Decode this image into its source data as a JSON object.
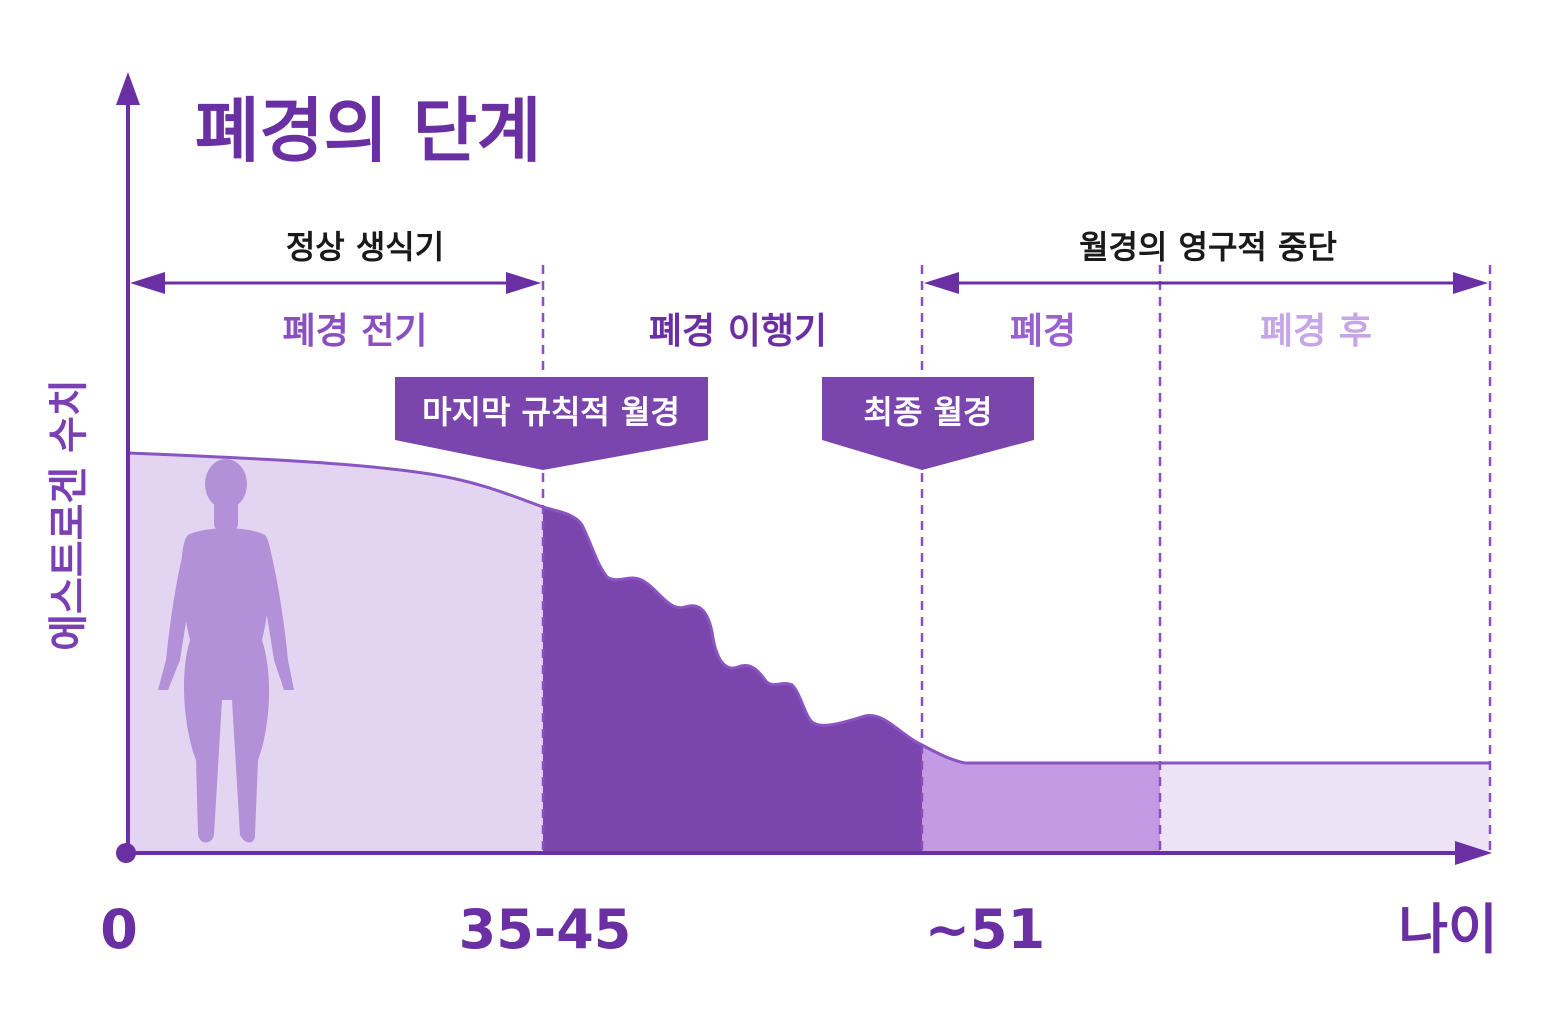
{
  "title": "폐경의 단계",
  "y_axis_label": "에스트로겐 수치",
  "x_axis_label": "나이",
  "x_ticks": [
    "0",
    "35-45",
    "~51"
  ],
  "spans": {
    "reproductive": "정상 생식기",
    "permanent_cessation": "월경의 영구적 중단"
  },
  "phases": [
    {
      "label": "폐경 전기",
      "color": "#8a4fc0"
    },
    {
      "label": "폐경 이행기",
      "color": "#6a2fa3"
    },
    {
      "label": "폐경",
      "color": "#9a5fd0"
    },
    {
      "label": "폐경 후",
      "color": "#c7a6e6"
    }
  ],
  "markers": {
    "last_regular_period": "마지막 규칙적 월경",
    "final_period": "최종 월경"
  },
  "colors": {
    "primary": "#6a2fa3",
    "premenopause_fill": "#e3d4f2",
    "transition_fill": "#7b45ae",
    "menopause_fill": "#c39ae3",
    "postmenopause_fill": "#ece3f6",
    "figure": "#b391d8"
  }
}
